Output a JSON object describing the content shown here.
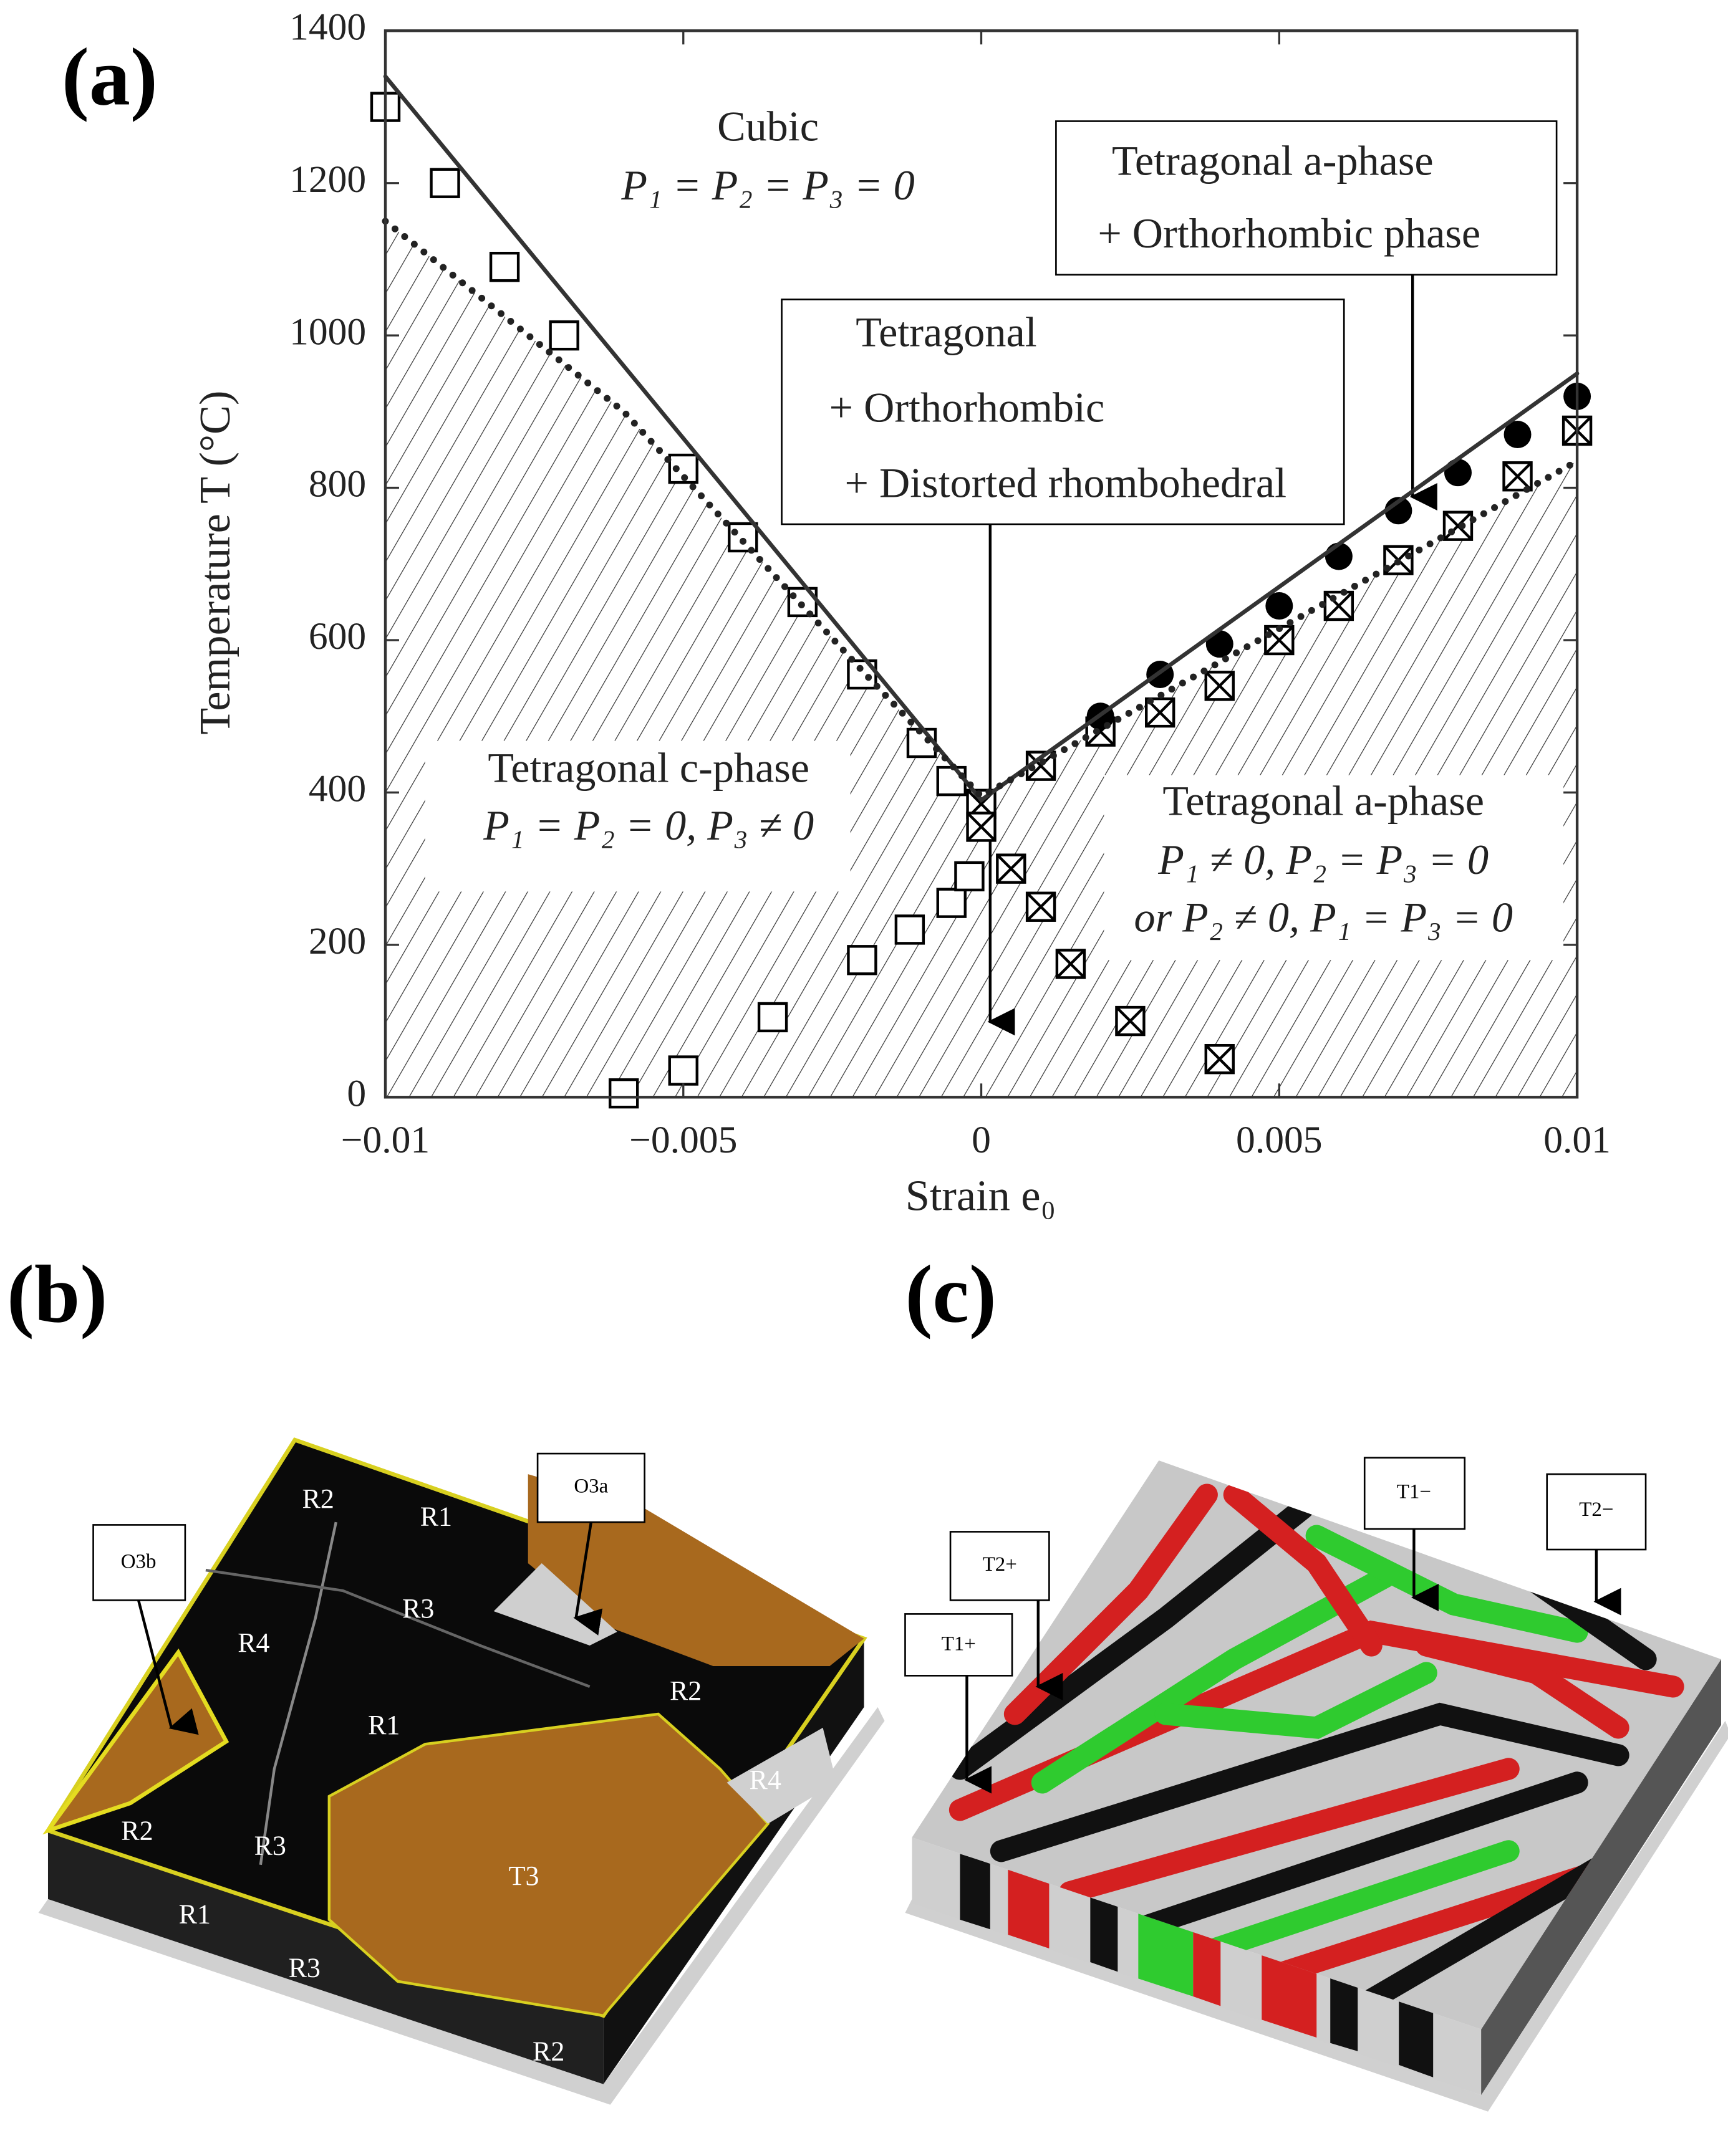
{
  "panel_labels": [
    "(a)",
    "(b)",
    "(c)"
  ],
  "chart_data": {
    "type": "scatter",
    "xlabel": "Strain e₀",
    "ylabel": "Temperature T (°C)",
    "annotations": [
      "Cubic",
      "P₁ = P₂ = P₃ = 0",
      "Tetragonal a-phase",
      "+ Orthorhombic phase",
      "Tetragonal",
      "+ Orthorhombic",
      "+ Distorted rhombohedral",
      "Tetragonal c-phase",
      "P₁ = P₂ = 0, P₃ ≠ 0",
      "Tetragonal a-phase",
      "P₁ ≠ 0, P₂ = P₃ = 0",
      "or P₂ ≠ 0, P₁ = P₃ = 0"
    ],
    "xlim": [
      -0.01,
      0.01
    ],
    "ylim": [
      0,
      1400
    ],
    "xticks": [
      {
        "value": -0.01,
        "label": "−0.01"
      },
      {
        "value": -0.005,
        "label": "−0.005"
      },
      0,
      0.005,
      0.01
    ],
    "yticks": [
      0,
      200,
      400,
      600,
      800,
      1000,
      1200,
      1400
    ],
    "grid": false,
    "series": [
      {
        "marker": "square",
        "color": "#000000",
        "x": [
          -0.01,
          -0.009,
          -0.008,
          -0.007,
          -0.005,
          -0.004,
          -0.003,
          -0.002,
          -0.001,
          -0.0005,
          -0.006,
          -0.005,
          -0.0035,
          -0.002,
          -0.0012,
          -0.0005,
          -0.0002
        ],
        "values": [
          1300,
          1200,
          1090,
          1000,
          825,
          735,
          650,
          555,
          465,
          415,
          5,
          35,
          105,
          180,
          220,
          255,
          290
        ]
      },
      {
        "marker": "crossed-square",
        "color": "#000000",
        "x": [
          0,
          0,
          0.0005,
          0.001,
          0.0015,
          0.0025,
          0.004,
          0.001,
          0.002,
          0.003,
          0.004,
          0.005,
          0.006,
          0.007,
          0.008,
          0.009,
          0.01
        ],
        "values": [
          385,
          355,
          300,
          250,
          175,
          100,
          50,
          435,
          480,
          505,
          540,
          600,
          645,
          705,
          750,
          815,
          875
        ]
      },
      {
        "marker": "circle",
        "color": "#000000",
        "x": [
          0.002,
          0.003,
          0.004,
          0.005,
          0.006,
          0.007,
          0.008,
          0.009,
          0.01
        ],
        "values": [
          500,
          555,
          595,
          645,
          710,
          770,
          820,
          870,
          920
        ]
      },
      {
        "marker": "solid-line",
        "color": "#333333",
        "x": [
          -0.01,
          0,
          0.01
        ],
        "values": [
          1340,
          390,
          950
        ]
      },
      {
        "marker": "dotted-line",
        "color": "#222222",
        "x": [
          -0.01,
          -0.006,
          -0.002,
          0,
          0.01
        ],
        "values": [
          1150,
          900,
          560,
          395,
          835
        ]
      }
    ]
  },
  "panel_b": {
    "labels": [
      "O3b",
      "O3a",
      "R2",
      "R1",
      "R3",
      "R4",
      "R2",
      "R1",
      "R4",
      "R2",
      "R3",
      "T3",
      "R1",
      "R3",
      "R2"
    ]
  },
  "panel_c": {
    "labels": [
      "T1−",
      "T2−",
      "T2+",
      "T1+"
    ]
  }
}
